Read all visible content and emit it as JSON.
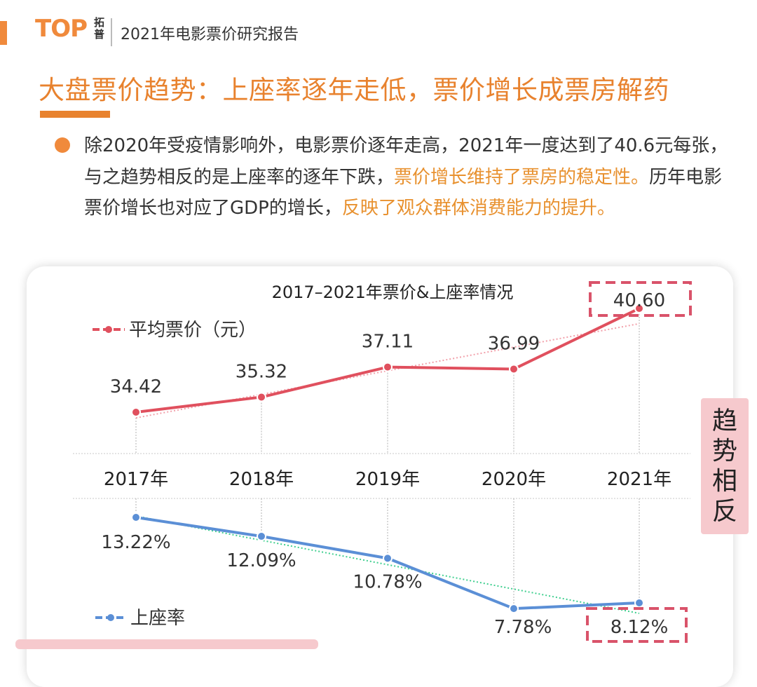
{
  "header": {
    "logo_text": "TOP",
    "logo_cn": "拓普",
    "report_title": "2021年电影票价研究报告"
  },
  "main_title": "大盘票价趋势：上座率逐年走低，票价增长成票房解药",
  "paragraph": {
    "p1": "除2020年受疫情影响外，电影票价逐年走高，2021年一度达到了40.6元每张，与之趋势相反的是上座率的逐年下跌，",
    "h1": "票价增长维持了票房的稳定性。",
    "p2": "历年电影票价增长也对应了GDP的增长，",
    "h2": "反映了观众群体消费能力的提升。"
  },
  "side_label": [
    "趋",
    "势",
    "相",
    "反"
  ],
  "colors": {
    "accent": "#e8822e",
    "highlight": "#e8912f",
    "price_series": "#e0505e",
    "occupancy_series": "#5b8fd6",
    "occupancy_trend": "#3fcf8f",
    "dashed_box": "#d9536a",
    "side_label_bg": "#f6c9cd"
  },
  "chart_data": {
    "type": "line",
    "title": "2017–2021年票价&上座率情况",
    "categories": [
      "2017年",
      "2018年",
      "2019年",
      "2020年",
      "2021年"
    ],
    "series": [
      {
        "name": "平均票价（元）",
        "values": [
          34.42,
          35.32,
          37.11,
          36.99,
          40.6
        ],
        "labels": [
          "34.42",
          "35.32",
          "37.11",
          "36.99",
          "40.60"
        ],
        "trendline": true
      },
      {
        "name": "上座率",
        "values": [
          13.22,
          12.09,
          10.78,
          7.78,
          8.12
        ],
        "labels": [
          "13.22%",
          "12.09%",
          "10.78%",
          "7.78%",
          "8.12%"
        ],
        "unit": "%",
        "trendline": true
      }
    ],
    "highlighted_labels": [
      "40.60",
      "8.12%"
    ],
    "legend": "left"
  }
}
